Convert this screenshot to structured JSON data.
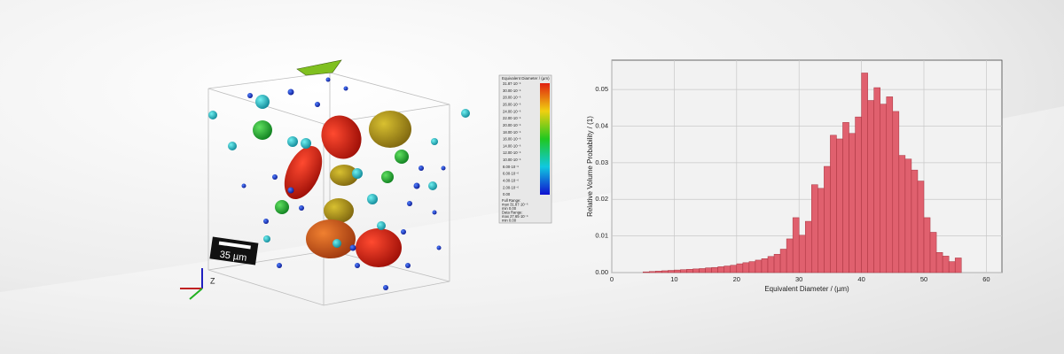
{
  "scene": {
    "scale_bar": "35 µm",
    "axis_label": "Z",
    "colorbar": {
      "title": "Equivalent Diameter / (µm)",
      "labels": [
        "31.87·10⁻⁶",
        "30.00·10⁻⁶",
        "28.00·10⁻⁶",
        "26.00·10⁻⁶",
        "24.00·10⁻⁶",
        "22.00·10⁻⁶",
        "20.00·10⁻⁶",
        "18.00·10⁻⁶",
        "16.00·10⁻⁶",
        "14.00·10⁻⁶",
        "12.00·10⁻⁶",
        "10.00·10⁻⁶",
        "8.00·10⁻⁶",
        "6.00·10⁻⁶",
        "4.00·10⁻⁶",
        "2.00·10⁻⁶",
        "0.00"
      ],
      "notes": [
        "Full Range:",
        "max  31.87·10⁻⁶",
        "min  0.00",
        "Data Range:",
        "max  27.65·10⁻⁶",
        "min  0.00"
      ]
    }
  },
  "chart_data": {
    "type": "histogram",
    "xlabel": "Equivalent Diameter / (µm)",
    "ylabel": "Relative Volume Probability / (1)",
    "color": "#e0606e",
    "edge_color": "#a8323e",
    "grid": true,
    "bins": [
      5,
      6,
      7,
      8,
      9,
      10,
      11,
      12,
      13,
      14,
      15,
      16,
      17,
      18,
      19,
      20,
      21,
      22,
      23,
      24,
      25,
      26,
      27,
      28,
      29,
      30,
      31,
      32,
      33,
      34,
      35,
      36,
      37,
      38,
      39,
      40,
      41,
      42,
      43,
      44,
      45,
      46,
      47,
      48,
      49,
      50,
      51,
      52,
      53,
      54,
      55,
      56
    ],
    "values": [
      0.0002,
      0.0003,
      0.0004,
      0.0005,
      0.0006,
      0.0007,
      0.0008,
      0.0009,
      0.001,
      0.0011,
      0.0013,
      0.0014,
      0.0016,
      0.0018,
      0.002,
      0.0024,
      0.0027,
      0.003,
      0.0034,
      0.0038,
      0.0044,
      0.005,
      0.0064,
      0.0092,
      0.015,
      0.0102,
      0.014,
      0.024,
      0.023,
      0.029,
      0.0375,
      0.0365,
      0.041,
      0.038,
      0.0425,
      0.0545,
      0.047,
      0.0505,
      0.046,
      0.048,
      0.044,
      0.032,
      0.031,
      0.028,
      0.025,
      0.015,
      0.011,
      0.0055,
      0.0045,
      0.003,
      0.004
    ],
    "xlim": [
      0,
      62.5
    ],
    "xticks": [
      0,
      10,
      20,
      30,
      40,
      50,
      60
    ],
    "ylim": [
      0,
      0.058
    ],
    "yticks": [
      {
        "value": 0,
        "label": "0.00"
      },
      {
        "value": 0.01,
        "label": "0.01"
      },
      {
        "value": 0.02,
        "label": "0.02"
      },
      {
        "value": 0.03,
        "label": "0.03"
      },
      {
        "value": 0.04,
        "label": "0.04"
      },
      {
        "value": 0.05,
        "label": "0.05"
      }
    ]
  }
}
